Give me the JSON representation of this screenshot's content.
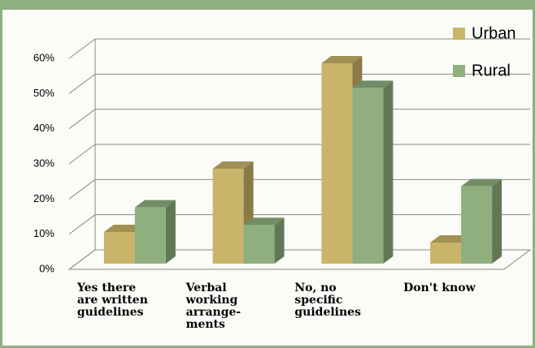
{
  "chart_data": {
    "type": "bar3d",
    "categories": [
      "Yes there\nare written\nguidelines",
      "Verbal\nworking\narrange-\nments",
      "No, no\nspecific\nguidelines",
      "Don't know"
    ],
    "series": [
      {
        "name": "Urban",
        "color": "#c9b469",
        "values": [
          9,
          27,
          57,
          6
        ]
      },
      {
        "name": "Rural",
        "color": "#8fb07e",
        "values": [
          16,
          11,
          50,
          22
        ]
      }
    ],
    "ylim": [
      0,
      60
    ],
    "yticks": [
      {
        "value": 0,
        "label": "0%"
      },
      {
        "value": 10,
        "label": "10%"
      },
      {
        "value": 20,
        "label": "20%"
      },
      {
        "value": 30,
        "label": "30%"
      },
      {
        "value": 40,
        "label": "40%"
      },
      {
        "value": 50,
        "label": "50%"
      },
      {
        "value": 60,
        "label": "60%"
      }
    ],
    "grid": true,
    "legend": "top-right"
  }
}
